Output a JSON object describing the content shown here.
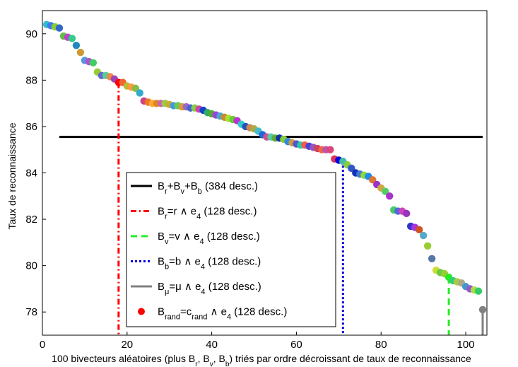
{
  "chart_data": {
    "type": "scatter",
    "xlabel": "100 bivecteurs aléatoires (plus B_r, B_v, B_b) triés par ordre décroissant de taux de reconnaissance",
    "ylabel": "Taux de reconnaissance",
    "xlim": [
      0,
      105
    ],
    "ylim": [
      77,
      91
    ],
    "xticks": [
      0,
      20,
      40,
      60,
      80,
      100
    ],
    "yticks": [
      78,
      80,
      82,
      84,
      86,
      88,
      90
    ],
    "reference_line": {
      "value": 85.55,
      "color": "#000000"
    },
    "markers": [
      {
        "name": "B_r",
        "x": 18,
        "y": 87.9,
        "color": "#ff0000",
        "style": "dashdot"
      },
      {
        "name": "B_v",
        "x": 96,
        "y": 79.5,
        "color": "#22ee22",
        "style": "dashed"
      },
      {
        "name": "B_b",
        "x": 71,
        "y": 84.5,
        "color": "#0000dd",
        "style": "dotted"
      },
      {
        "name": "B_mu",
        "x": 104,
        "y": 78.1,
        "color": "#808080",
        "style": "solid"
      }
    ],
    "points_x": [
      1,
      2,
      3,
      4,
      5,
      6,
      7,
      8,
      9,
      10,
      11,
      12,
      13,
      14,
      15,
      16,
      17,
      18,
      19,
      20,
      21,
      22,
      23,
      24,
      25,
      26,
      27,
      28,
      29,
      30,
      31,
      32,
      33,
      34,
      35,
      36,
      37,
      38,
      39,
      40,
      41,
      42,
      43,
      44,
      45,
      46,
      47,
      48,
      49,
      50,
      51,
      52,
      53,
      54,
      55,
      56,
      57,
      58,
      59,
      60,
      61,
      62,
      63,
      64,
      65,
      66,
      67,
      68,
      69,
      70,
      71,
      72,
      73,
      74,
      75,
      76,
      77,
      78,
      79,
      80,
      81,
      82,
      83,
      84,
      85,
      86,
      87,
      88,
      89,
      90,
      91,
      92,
      93,
      94,
      95,
      96,
      97,
      98,
      99,
      100,
      101,
      102,
      103,
      104
    ],
    "points_y": [
      90.4,
      90.35,
      90.3,
      90.25,
      89.9,
      89.85,
      89.8,
      89.5,
      89.2,
      88.85,
      88.8,
      88.75,
      88.35,
      88.2,
      88.2,
      88.15,
      88.05,
      87.9,
      87.9,
      87.75,
      87.7,
      87.65,
      87.45,
      87.1,
      87.05,
      87.0,
      87.0,
      87.0,
      87.0,
      86.95,
      86.9,
      86.9,
      86.85,
      86.85,
      86.8,
      86.8,
      86.75,
      86.7,
      86.6,
      86.55,
      86.5,
      86.45,
      86.4,
      86.35,
      86.3,
      86.25,
      86.1,
      86.0,
      85.95,
      85.9,
      85.8,
      85.65,
      85.55,
      85.55,
      85.5,
      85.5,
      85.45,
      85.35,
      85.3,
      85.25,
      85.2,
      85.2,
      85.15,
      85.1,
      85.05,
      85.0,
      85.0,
      85.0,
      84.6,
      84.55,
      84.5,
      84.35,
      84.2,
      84.0,
      83.95,
      83.9,
      83.85,
      83.7,
      83.5,
      83.35,
      83.2,
      83.0,
      82.4,
      82.35,
      82.35,
      82.25,
      81.7,
      81.65,
      81.55,
      81.3,
      80.85,
      80.3,
      79.8,
      79.7,
      79.65,
      79.5,
      79.35,
      79.3,
      79.25,
      79.1,
      79.0,
      78.95,
      78.9,
      78.1
    ],
    "point_colors": [
      "#33bbcc",
      "#4477ee",
      "#88cc33",
      "#3366cc",
      "#66bb44",
      "#bb44cc",
      "#33cc88",
      "#2288bb",
      "#cc9933",
      "#5599dd",
      "#aa55cc",
      "#44cc66",
      "#99cc33",
      "#6666cc",
      "#55cc99",
      "#ee8844",
      "#9944bb",
      "#ff0000",
      "#ee6633",
      "#bbbb33",
      "#ff9944",
      "#88bb44",
      "#33aacc",
      "#cc4488",
      "#ee7722",
      "#ffaa33",
      "#dd8822",
      "#cc66aa",
      "#99cc44",
      "#ccaa33",
      "#4499dd",
      "#66cc55",
      "#dd9933",
      "#9966cc",
      "#4466cc",
      "#88cc44",
      "#cc44aa",
      "#1144cc",
      "#33aa66",
      "#55aa33",
      "#9944dd",
      "#44aacc",
      "#cc8833",
      "#aadd33",
      "#66cc33",
      "#bb33cc",
      "#33cccc",
      "#2255bb",
      "#cc8855",
      "#aaaa44",
      "#44bbcc",
      "#2266dd",
      "#cc5588",
      "#55ccaa",
      "#66aa33",
      "#1133aa",
      "#88cc33",
      "#3388dd",
      "#cc9944",
      "#5555cc",
      "#22ccaa",
      "#ff5544",
      "#4444dd",
      "#9955bb",
      "#cc4455",
      "#ee6644",
      "#bb55aa",
      "#dd4477",
      "#dd3355",
      "#0000dd",
      "#44bbaa",
      "#88cc44",
      "#3355cc",
      "#1133bb",
      "#4477cc",
      "#88dd33",
      "#2288ee",
      "#dd7733",
      "#9933cc",
      "#ccaa44",
      "#55cc66",
      "#aa33cc",
      "#44cc66",
      "#5566dd",
      "#cc44bb",
      "#9933bb",
      "#3333cc",
      "#aa33dd",
      "#cc5522",
      "#55aacc",
      "#99cc33",
      "#5577aa",
      "#ccdd33",
      "#66cc44",
      "#99cc33",
      "#22ee22",
      "#33cc77",
      "#aacc44",
      "#aaaa88",
      "#4499cc",
      "#9955cc",
      "#aadd44",
      "#33cc66",
      "#808080"
    ],
    "legend": {
      "placement": "inside-lower-left",
      "entries": [
        {
          "style": "solid",
          "color": "#000000",
          "parts": [
            [
              "B",
              "r",
              ""
            ],
            [
              "+B",
              "v",
              ""
            ],
            [
              "+B",
              "b",
              ""
            ],
            [
              " (384 desc.)",
              "",
              ""
            ]
          ]
        },
        {
          "style": "dashdot",
          "color": "#ff0000",
          "parts": [
            [
              "B",
              "r",
              ""
            ],
            [
              "=r ∧ e",
              "4",
              ""
            ],
            [
              " (128 desc.)",
              "",
              ""
            ]
          ]
        },
        {
          "style": "dashed",
          "color": "#22ee22",
          "parts": [
            [
              "B",
              "v",
              ""
            ],
            [
              "=v ∧ e",
              "4",
              ""
            ],
            [
              " (128 desc.)",
              "",
              ""
            ]
          ]
        },
        {
          "style": "dotted",
          "color": "#0000dd",
          "parts": [
            [
              "B",
              "b",
              ""
            ],
            [
              "=b ∧ e",
              "4",
              ""
            ],
            [
              " (128 desc.)",
              "",
              ""
            ]
          ]
        },
        {
          "style": "solid-gray",
          "color": "#808080",
          "parts": [
            [
              "B",
              "μ",
              ""
            ],
            [
              "=μ ∧ e",
              "4",
              ""
            ],
            [
              " (128 desc.)",
              "",
              ""
            ]
          ]
        },
        {
          "style": "marker",
          "color": "#ff0000",
          "parts": [
            [
              "B",
              "rand",
              ""
            ],
            [
              "=c",
              "rand",
              ""
            ],
            [
              " ∧ e",
              "4",
              ""
            ],
            [
              " (128 desc.)",
              "",
              ""
            ]
          ]
        }
      ]
    }
  }
}
